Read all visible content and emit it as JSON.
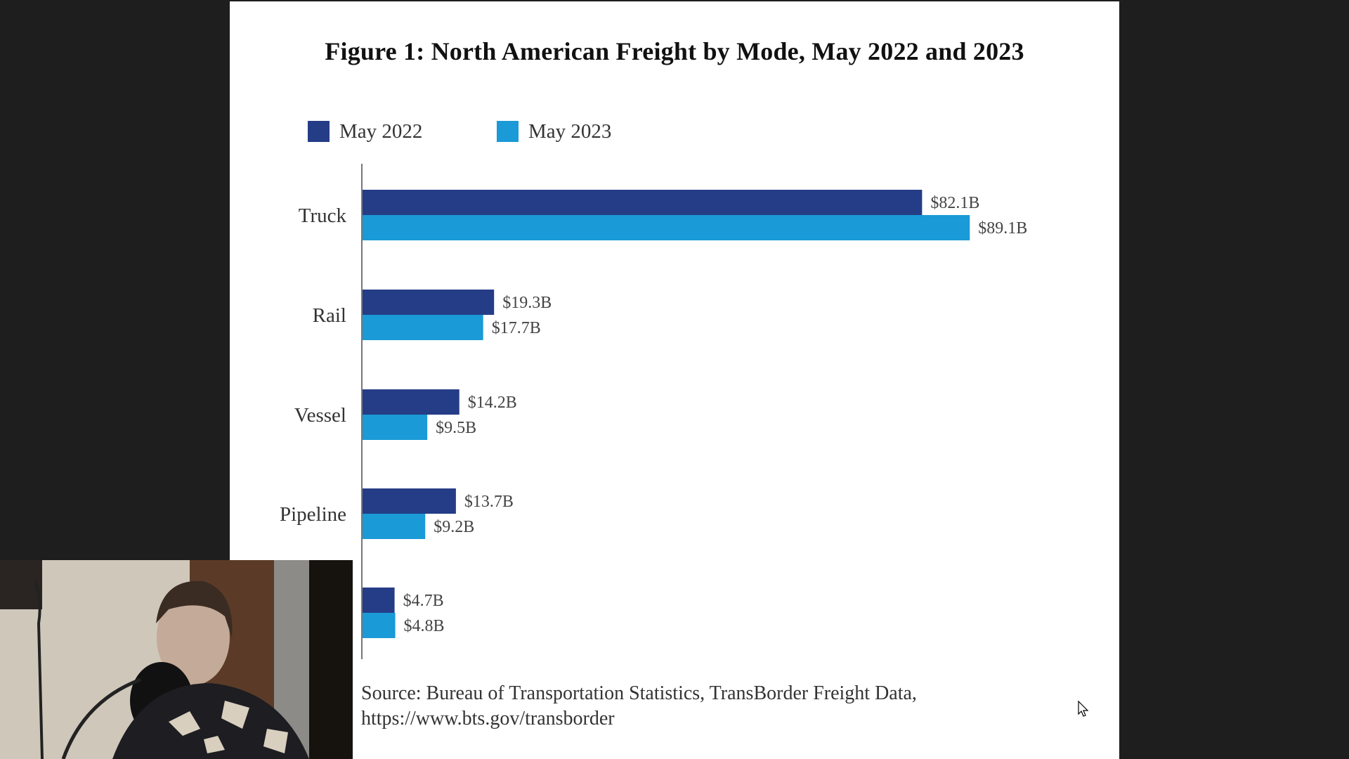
{
  "document": {
    "title": "Figure 1: North American Freight by Mode, May 2022 and 2023",
    "source_line1": "Source: Bureau of Transportation Statistics, TransBorder Freight Data,",
    "source_line2": "https://www.bts.gov/transborder"
  },
  "legend": [
    {
      "label": "May 2022",
      "color": "#253d87"
    },
    {
      "label": "May 2023",
      "color": "#1a9ad6"
    }
  ],
  "chart_data": {
    "type": "bar",
    "orientation": "horizontal",
    "title": "Figure 1: North American Freight by Mode, May 2022 and 2023",
    "xlabel": "",
    "ylabel": "",
    "unit": "Billion USD",
    "categories": [
      "Truck",
      "Rail",
      "Vessel",
      "Pipeline",
      ""
    ],
    "series": [
      {
        "name": "May 2022",
        "color": "#253d87",
        "values": [
          82.1,
          19.3,
          14.2,
          13.7,
          4.7
        ],
        "labels": [
          "$82.1B",
          "$19.3B",
          "$14.2B",
          "$13.7B",
          "$4.7B"
        ]
      },
      {
        "name": "May 2023",
        "color": "#1a9ad6",
        "values": [
          89.1,
          17.7,
          9.5,
          9.2,
          4.8
        ],
        "labels": [
          "$89.1B",
          "$17.7B",
          "$9.5B",
          "$9.2B",
          "$4.8B"
        ]
      }
    ],
    "xlim": [
      0,
      100
    ],
    "grid": false,
    "legend_position": "top-left",
    "notes": "Fifth category label is hidden behind webcam overlay"
  },
  "overlay": {
    "webcam": "webcam-video-feed"
  }
}
